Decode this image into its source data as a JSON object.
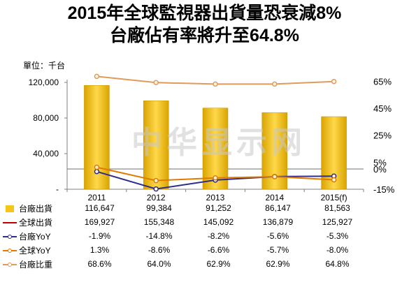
{
  "title_line1": "2015年全球監視器出貨量恐衰減8%",
  "title_line2": "台廠佔有率將升至64.8%",
  "unit_label": "單位：千台",
  "watermark": "中华显示网",
  "chart_data": {
    "type": "bar",
    "categories": [
      "2011",
      "2012",
      "2013",
      "2014",
      "2015(f)"
    ],
    "ylim": [
      0,
      120000
    ],
    "y_ticks": [
      "120,000",
      "80,000",
      "40,000",
      "-"
    ],
    "y_tick_values": [
      120000,
      80000,
      40000,
      0
    ],
    "y2_ticks": [
      "65%",
      "45%",
      "25%",
      "5%",
      "0%",
      "-15%"
    ],
    "y2_tick_values": [
      65,
      45,
      25,
      5,
      0,
      -15
    ],
    "series": [
      {
        "name": "台廠出貨",
        "type": "bar",
        "axis": "left",
        "color": "#f5c518",
        "values": [
          116647,
          99384,
          91252,
          86147,
          81563
        ],
        "display": [
          "116,647",
          "99,384",
          "91,252",
          "86,147",
          "81,563"
        ]
      },
      {
        "name": "全球出貨",
        "type": "none",
        "axis": "left",
        "color": "#c00000",
        "values": [
          169927,
          155348,
          145092,
          136879,
          125927
        ],
        "display": [
          "169,927",
          "155,348",
          "145,092",
          "136,879",
          "125,927"
        ]
      },
      {
        "name": "台廠YoY",
        "type": "line",
        "axis": "right",
        "color": "#2e2e8a",
        "values": [
          -1.9,
          -14.8,
          -8.2,
          -5.6,
          -5.3
        ],
        "display": [
          "-1.9%",
          "-14.8%",
          "-8.2%",
          "-5.6%",
          "-5.3%"
        ]
      },
      {
        "name": "全球YoY",
        "type": "line",
        "axis": "right",
        "color": "#e07b00",
        "values": [
          1.3,
          -8.6,
          -6.6,
          -5.7,
          -8.0
        ],
        "display": [
          "1.3%",
          "-8.6%",
          "-6.6%",
          "-5.7%",
          "-8.0%"
        ]
      },
      {
        "name": "台廠比重",
        "type": "line",
        "axis": "right",
        "color": "#e09a5a",
        "values": [
          68.6,
          64.0,
          62.9,
          62.9,
          64.8
        ],
        "display": [
          "68.6%",
          "64.0%",
          "62.9%",
          "62.9%",
          "64.8%"
        ]
      }
    ]
  }
}
